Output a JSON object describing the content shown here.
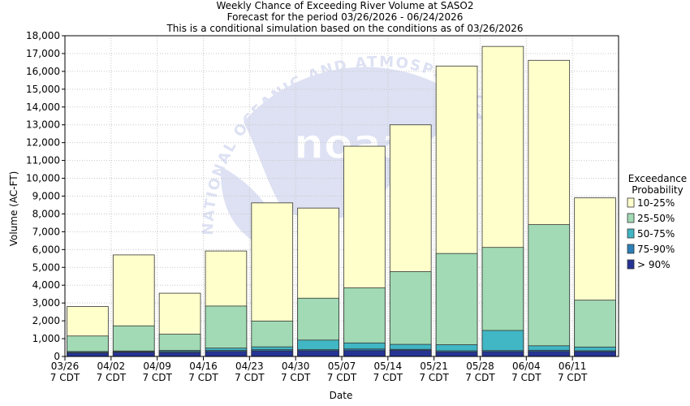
{
  "chart_data": {
    "type": "bar",
    "title": "Weekly Chance of Exceeding River Volume at SASO2",
    "subtitle": "Forecast for the period 03/26/2026 - 06/24/2026",
    "subtitle2": "This is a conditional simulation based on the conditions as of 03/26/2026",
    "xlabel": "Date",
    "ylabel": "Volume (AC-FT)",
    "ylim": [
      0,
      18000
    ],
    "yticks": [
      "0",
      "1,000",
      "2,000",
      "3,000",
      "4,000",
      "5,000",
      "6,000",
      "7,000",
      "8,000",
      "9,000",
      "10,000",
      "11,000",
      "12,000",
      "13,000",
      "14,000",
      "15,000",
      "16,000",
      "17,000",
      "18,000"
    ],
    "ytick_values": [
      0,
      1000,
      2000,
      3000,
      4000,
      5000,
      6000,
      7000,
      8000,
      9000,
      10000,
      11000,
      12000,
      13000,
      14000,
      15000,
      16000,
      17000,
      18000
    ],
    "xticks": [
      {
        "date": "03/26",
        "tz": "7 CDT"
      },
      {
        "date": "04/02",
        "tz": "7 CDT"
      },
      {
        "date": "04/09",
        "tz": "7 CDT"
      },
      {
        "date": "04/16",
        "tz": "7 CDT"
      },
      {
        "date": "04/23",
        "tz": "7 CDT"
      },
      {
        "date": "04/30",
        "tz": "7 CDT"
      },
      {
        "date": "05/07",
        "tz": "7 CDT"
      },
      {
        "date": "05/14",
        "tz": "7 CDT"
      },
      {
        "date": "05/21",
        "tz": "7 CDT"
      },
      {
        "date": "05/28",
        "tz": "7 CDT"
      },
      {
        "date": "06/04",
        "tz": "7 CDT"
      },
      {
        "date": "06/11",
        "tz": "7 CDT"
      }
    ],
    "grid": true,
    "legend_title": [
      "Exceedance",
      "Probability"
    ],
    "legend_position": "right",
    "series": [
      {
        "name": "10-25%",
        "color": "#ffffcc",
        "values": [
          2800,
          5700,
          3550,
          5920,
          8620,
          8330,
          11800,
          13000,
          16300,
          17400,
          16620,
          8900
        ]
      },
      {
        "name": "25-50%",
        "color": "#a1dab4",
        "values": [
          1150,
          1720,
          1250,
          2830,
          1990,
          3270,
          3850,
          4760,
          5780,
          6120,
          7400,
          3160
        ]
      },
      {
        "name": "50-75%",
        "color": "#41b6c4",
        "values": [
          280,
          310,
          340,
          470,
          540,
          920,
          760,
          680,
          660,
          1460,
          600,
          530
        ]
      },
      {
        "name": "75-90%",
        "color": "#2c7fb8",
        "values": [
          230,
          270,
          280,
          340,
          380,
          380,
          420,
          400,
          320,
          330,
          350,
          320
        ]
      },
      {
        "name": "> 90%",
        "color": "#253494",
        "values": [
          200,
          240,
          230,
          280,
          310,
          320,
          330,
          350,
          250,
          270,
          280,
          270
        ]
      }
    ]
  },
  "watermark": {
    "arc_text": "NATIONAL OCEANIC AND ATMOSPHERIC",
    "logo_text": "noaa"
  }
}
